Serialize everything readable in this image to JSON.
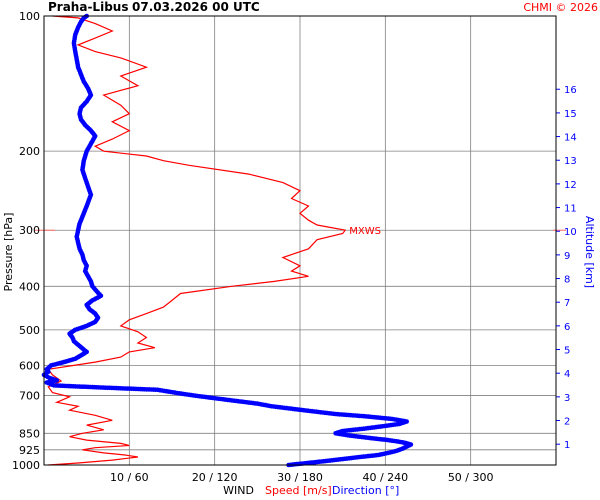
{
  "header": {
    "station": "Praha-Libus",
    "datetime": "07.03.2026 00 UTC",
    "credit": "CHMI © 2026"
  },
  "labels": {
    "y_left": "Pressure [hPa]",
    "y_right": "Altitude [km]",
    "x_main": "WIND",
    "x_speed": "Speed [m/s]",
    "x_dir": "Direction [°]",
    "maxwind": "MXWS"
  },
  "colors": {
    "speed": "#ff0000",
    "direction": "#0000ff",
    "grid": "#808080",
    "maxwind_marker": "#ff6666"
  },
  "chart_data": {
    "type": "line",
    "title": "Praha-Libus   07.03.2026 00 UTC",
    "xlabel": "WIND",
    "ylabel": "Pressure [hPa]",
    "y2label": "Altitude [km]",
    "y_scale": "log",
    "ylim": [
      1000,
      100
    ],
    "x_ticks": [
      "10 / 60",
      "20 / 120",
      "30 / 180",
      "40 / 240",
      "50 / 300"
    ],
    "x_tick_values_speed": [
      10,
      20,
      30,
      40,
      50
    ],
    "x_tick_values_dir": [
      60,
      120,
      180,
      240,
      300
    ],
    "xlim_speed": [
      0,
      60
    ],
    "xlim_dir": [
      0,
      360
    ],
    "pressure_ticks": [
      100,
      200,
      300,
      400,
      500,
      600,
      700,
      850,
      925,
      1000
    ],
    "altitude_ticks": [
      1,
      2,
      3,
      4,
      5,
      6,
      7,
      8,
      9,
      10,
      11,
      12,
      13,
      14,
      15,
      16
    ],
    "grid": true,
    "maxwind_level_hpa": 300,
    "series": [
      {
        "name": "Speed [m/s]",
        "axis": "speed",
        "style": "line",
        "points": [
          [
            1000,
            0.5
          ],
          [
            990,
            4
          ],
          [
            975,
            8
          ],
          [
            960,
            11
          ],
          [
            950,
            9.5
          ],
          [
            940,
            7
          ],
          [
            925,
            4.5
          ],
          [
            915,
            6
          ],
          [
            905,
            10
          ],
          [
            895,
            9
          ],
          [
            880,
            5
          ],
          [
            865,
            3
          ],
          [
            850,
            4.5
          ],
          [
            835,
            7
          ],
          [
            815,
            5
          ],
          [
            795,
            8
          ],
          [
            775,
            6
          ],
          [
            755,
            3
          ],
          [
            740,
            4
          ],
          [
            725,
            1.5
          ],
          [
            705,
            3
          ],
          [
            690,
            1
          ],
          [
            670,
            0.5
          ],
          [
            650,
            2
          ],
          [
            630,
            1
          ],
          [
            612,
            0.5
          ],
          [
            600,
            3.5
          ],
          [
            590,
            6
          ],
          [
            575,
            9
          ],
          [
            560,
            10
          ],
          [
            548,
            13
          ],
          [
            535,
            11
          ],
          [
            520,
            12
          ],
          [
            505,
            11
          ],
          [
            490,
            9
          ],
          [
            475,
            10
          ],
          [
            460,
            12
          ],
          [
            445,
            14
          ],
          [
            430,
            15
          ],
          [
            415,
            16
          ],
          [
            400,
            22
          ],
          [
            390,
            27
          ],
          [
            380,
            31
          ],
          [
            370,
            29
          ],
          [
            360,
            30
          ],
          [
            345,
            28
          ],
          [
            330,
            31
          ],
          [
            315,
            32
          ],
          [
            305,
            35
          ],
          [
            300,
            35.3
          ],
          [
            292,
            32
          ],
          [
            285,
            31
          ],
          [
            275,
            30
          ],
          [
            265,
            31
          ],
          [
            255,
            29
          ],
          [
            245,
            30
          ],
          [
            235,
            28
          ],
          [
            225,
            24
          ],
          [
            215,
            17
          ],
          [
            210,
            14
          ],
          [
            205,
            12
          ],
          [
            200,
            7
          ],
          [
            195,
            6
          ],
          [
            188,
            8
          ],
          [
            180,
            10
          ],
          [
            172,
            8
          ],
          [
            165,
            10
          ],
          [
            158,
            9
          ],
          [
            150,
            7
          ],
          [
            143,
            11
          ],
          [
            136,
            9
          ],
          [
            130,
            12
          ],
          [
            124,
            9
          ],
          [
            120,
            6
          ],
          [
            116,
            4
          ],
          [
            112,
            6
          ],
          [
            108,
            8
          ],
          [
            104,
            6
          ],
          [
            101,
            4
          ],
          [
            100,
            1
          ]
        ]
      },
      {
        "name": "Direction [°]",
        "axis": "direction",
        "style": "dots",
        "points": [
          [
            1000,
            172
          ],
          [
            990,
            185
          ],
          [
            980,
            198
          ],
          [
            970,
            210
          ],
          [
            960,
            222
          ],
          [
            950,
            235
          ],
          [
            940,
            242
          ],
          [
            930,
            248
          ],
          [
            920,
            252
          ],
          [
            910,
            255
          ],
          [
            900,
            258
          ],
          [
            890,
            252
          ],
          [
            880,
            242
          ],
          [
            870,
            228
          ],
          [
            860,
            215
          ],
          [
            850,
            205
          ],
          [
            840,
            210
          ],
          [
            830,
            225
          ],
          [
            820,
            238
          ],
          [
            810,
            250
          ],
          [
            800,
            255
          ],
          [
            790,
            245
          ],
          [
            780,
            228
          ],
          [
            770,
            205
          ],
          [
            760,
            190
          ],
          [
            750,
            175
          ],
          [
            740,
            160
          ],
          [
            730,
            150
          ],
          [
            720,
            135
          ],
          [
            710,
            120
          ],
          [
            700,
            105
          ],
          [
            690,
            92
          ],
          [
            680,
            80
          ],
          [
            672,
            40
          ],
          [
            665,
            7
          ],
          [
            655,
            2
          ],
          [
            648,
            9
          ],
          [
            640,
            4
          ],
          [
            630,
            0
          ],
          [
            620,
            3
          ],
          [
            612,
            2
          ],
          [
            600,
            5
          ],
          [
            590,
            14
          ],
          [
            580,
            22
          ],
          [
            570,
            26
          ],
          [
            560,
            30
          ],
          [
            550,
            27
          ],
          [
            540,
            24
          ],
          [
            530,
            21
          ],
          [
            520,
            20
          ],
          [
            510,
            18
          ],
          [
            500,
            22
          ],
          [
            490,
            30
          ],
          [
            480,
            36
          ],
          [
            470,
            38
          ],
          [
            460,
            36
          ],
          [
            450,
            32
          ],
          [
            440,
            30
          ],
          [
            430,
            34
          ],
          [
            420,
            40
          ],
          [
            410,
            37
          ],
          [
            400,
            34
          ],
          [
            390,
            33
          ],
          [
            380,
            31
          ],
          [
            370,
            29
          ],
          [
            360,
            30
          ],
          [
            350,
            28
          ],
          [
            340,
            27
          ],
          [
            330,
            25
          ],
          [
            320,
            24
          ],
          [
            310,
            23
          ],
          [
            300,
            24
          ],
          [
            290,
            25
          ],
          [
            280,
            27
          ],
          [
            270,
            29
          ],
          [
            260,
            31
          ],
          [
            250,
            33
          ],
          [
            240,
            31
          ],
          [
            230,
            29
          ],
          [
            220,
            27
          ],
          [
            210,
            28
          ],
          [
            200,
            30
          ],
          [
            195,
            32
          ],
          [
            190,
            34
          ],
          [
            185,
            36
          ],
          [
            180,
            33
          ],
          [
            175,
            29
          ],
          [
            170,
            26
          ],
          [
            165,
            25
          ],
          [
            160,
            26
          ],
          [
            155,
            30
          ],
          [
            150,
            33
          ],
          [
            145,
            31
          ],
          [
            140,
            28
          ],
          [
            135,
            26
          ],
          [
            130,
            24
          ],
          [
            125,
            23
          ],
          [
            120,
            22
          ],
          [
            115,
            21
          ],
          [
            110,
            22
          ],
          [
            106,
            24
          ],
          [
            103,
            26
          ],
          [
            101,
            28
          ],
          [
            100,
            30
          ]
        ]
      }
    ]
  }
}
